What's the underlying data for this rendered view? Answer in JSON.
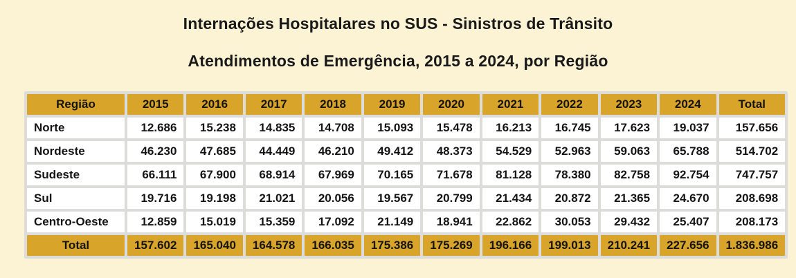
{
  "title": {
    "line1": "Internações Hospitalares no SUS - Sinistros de Trânsito",
    "line2": "Atendimentos de Emergência, 2015 a 2024, por Região"
  },
  "colors": {
    "page_background": "#FBF3D4",
    "header_and_total_bg": "#D9A42A",
    "data_cell_bg": "#FFFFFF",
    "grid_gap": "#DCDCDA",
    "text": "#141414"
  },
  "chart_data": {
    "type": "table",
    "title": "Internações Hospitalares no SUS - Sinistros de Trânsito — Atendimentos de Emergência, 2015 a 2024, por Região",
    "columns": [
      "Região",
      "2015",
      "2016",
      "2017",
      "2018",
      "2019",
      "2020",
      "2021",
      "2022",
      "2023",
      "2024",
      "Total"
    ],
    "rows": [
      {
        "label": "Norte",
        "values": [
          "12.686",
          "15.238",
          "14.835",
          "14.708",
          "15.093",
          "15.478",
          "16.213",
          "16.745",
          "17.623",
          "19.037",
          "157.656"
        ]
      },
      {
        "label": "Nordeste",
        "values": [
          "46.230",
          "47.685",
          "44.449",
          "46.210",
          "49.412",
          "48.373",
          "54.529",
          "52.963",
          "59.063",
          "65.788",
          "514.702"
        ]
      },
      {
        "label": "Sudeste",
        "values": [
          "66.111",
          "67.900",
          "68.914",
          "67.969",
          "70.165",
          "71.678",
          "81.128",
          "78.380",
          "82.758",
          "92.754",
          "747.757"
        ]
      },
      {
        "label": "Sul",
        "values": [
          "19.716",
          "19.198",
          "21.021",
          "20.056",
          "19.567",
          "20.799",
          "21.434",
          "20.872",
          "21.365",
          "24.670",
          "208.698"
        ]
      },
      {
        "label": "Centro-Oeste",
        "values": [
          "12.859",
          "15.019",
          "15.359",
          "17.092",
          "21.149",
          "18.941",
          "22.862",
          "30.053",
          "29.432",
          "25.407",
          "208.173"
        ]
      }
    ],
    "total_row": {
      "label": "Total",
      "values": [
        "157.602",
        "165.040",
        "164.578",
        "166.035",
        "175.386",
        "175.269",
        "196.166",
        "199.013",
        "210.241",
        "227.656",
        "1.836.986"
      ]
    }
  }
}
